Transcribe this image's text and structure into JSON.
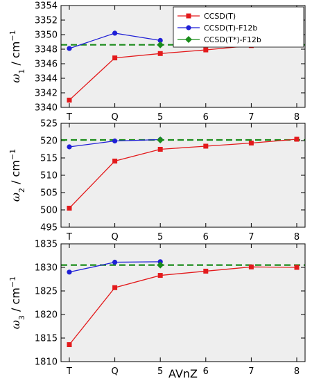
{
  "chart_data": {
    "type": "line",
    "categories": [
      "T",
      "Q",
      "5",
      "6",
      "7",
      "8"
    ],
    "xlabel": "AVnZ",
    "legend": {
      "placement": "top-right",
      "entries": [
        "CCSD(T)",
        "CCSD(T)-F12b",
        "CCSD(T*)-F12b"
      ]
    },
    "colors": {
      "ccsdt": "#e31a1c",
      "f12b": "#1f1fd6",
      "tstar": "#1a8c1a",
      "background": "#eeeeee"
    },
    "panels": [
      {
        "ylabel_symbol": "ω",
        "ylabel_sub": "1",
        "ylabel_unit": " / cm",
        "ylabel_exp": "−1",
        "ylim": [
          3340,
          3354
        ],
        "yticks": [
          3340,
          3342,
          3344,
          3346,
          3348,
          3350,
          3352,
          3354
        ],
        "series": [
          {
            "name": "CCSD(T)",
            "style": "red-square",
            "values": [
              3341.0,
              3346.8,
              3347.4,
              3347.9,
              3348.5,
              3349.1
            ]
          },
          {
            "name": "CCSD(T)-F12b",
            "style": "blue-circle",
            "values": [
              3348.1,
              3350.2,
              3349.2
            ]
          },
          {
            "name": "CCSD(T*)-F12b",
            "style": "green-diamond",
            "values": [
              null,
              null,
              3348.6
            ],
            "reference": 3348.6
          }
        ]
      },
      {
        "ylabel_symbol": "ω",
        "ylabel_sub": "2",
        "ylabel_unit": " / cm",
        "ylabel_exp": "−1",
        "ylim": [
          495,
          525
        ],
        "yticks": [
          495,
          500,
          505,
          510,
          515,
          520,
          525
        ],
        "series": [
          {
            "name": "CCSD(T)",
            "style": "red-square",
            "values": [
              500.5,
              514.1,
              517.5,
              518.4,
              519.3,
              520.4
            ]
          },
          {
            "name": "CCSD(T)-F12b",
            "style": "blue-circle",
            "values": [
              518.2,
              519.9,
              520.3
            ]
          },
          {
            "name": "CCSD(T*)-F12b",
            "style": "green-diamond",
            "values": [
              null,
              null,
              520.2
            ],
            "reference": 520.2
          }
        ]
      },
      {
        "ylabel_symbol": "ω",
        "ylabel_sub": "3",
        "ylabel_unit": " / cm",
        "ylabel_exp": "−1",
        "ylim": [
          1810,
          1835
        ],
        "yticks": [
          1810,
          1815,
          1820,
          1825,
          1830,
          1835
        ],
        "series": [
          {
            "name": "CCSD(T)",
            "style": "red-square",
            "values": [
              1813.6,
              1825.7,
              1828.3,
              1829.2,
              1830.1,
              1830.0
            ]
          },
          {
            "name": "CCSD(T)-F12b",
            "style": "blue-circle",
            "values": [
              1829.0,
              1831.1,
              1831.2
            ]
          },
          {
            "name": "CCSD(T*)-F12b",
            "style": "green-diamond",
            "values": [
              null,
              null,
              1830.5
            ],
            "reference": 1830.5
          }
        ]
      }
    ]
  }
}
